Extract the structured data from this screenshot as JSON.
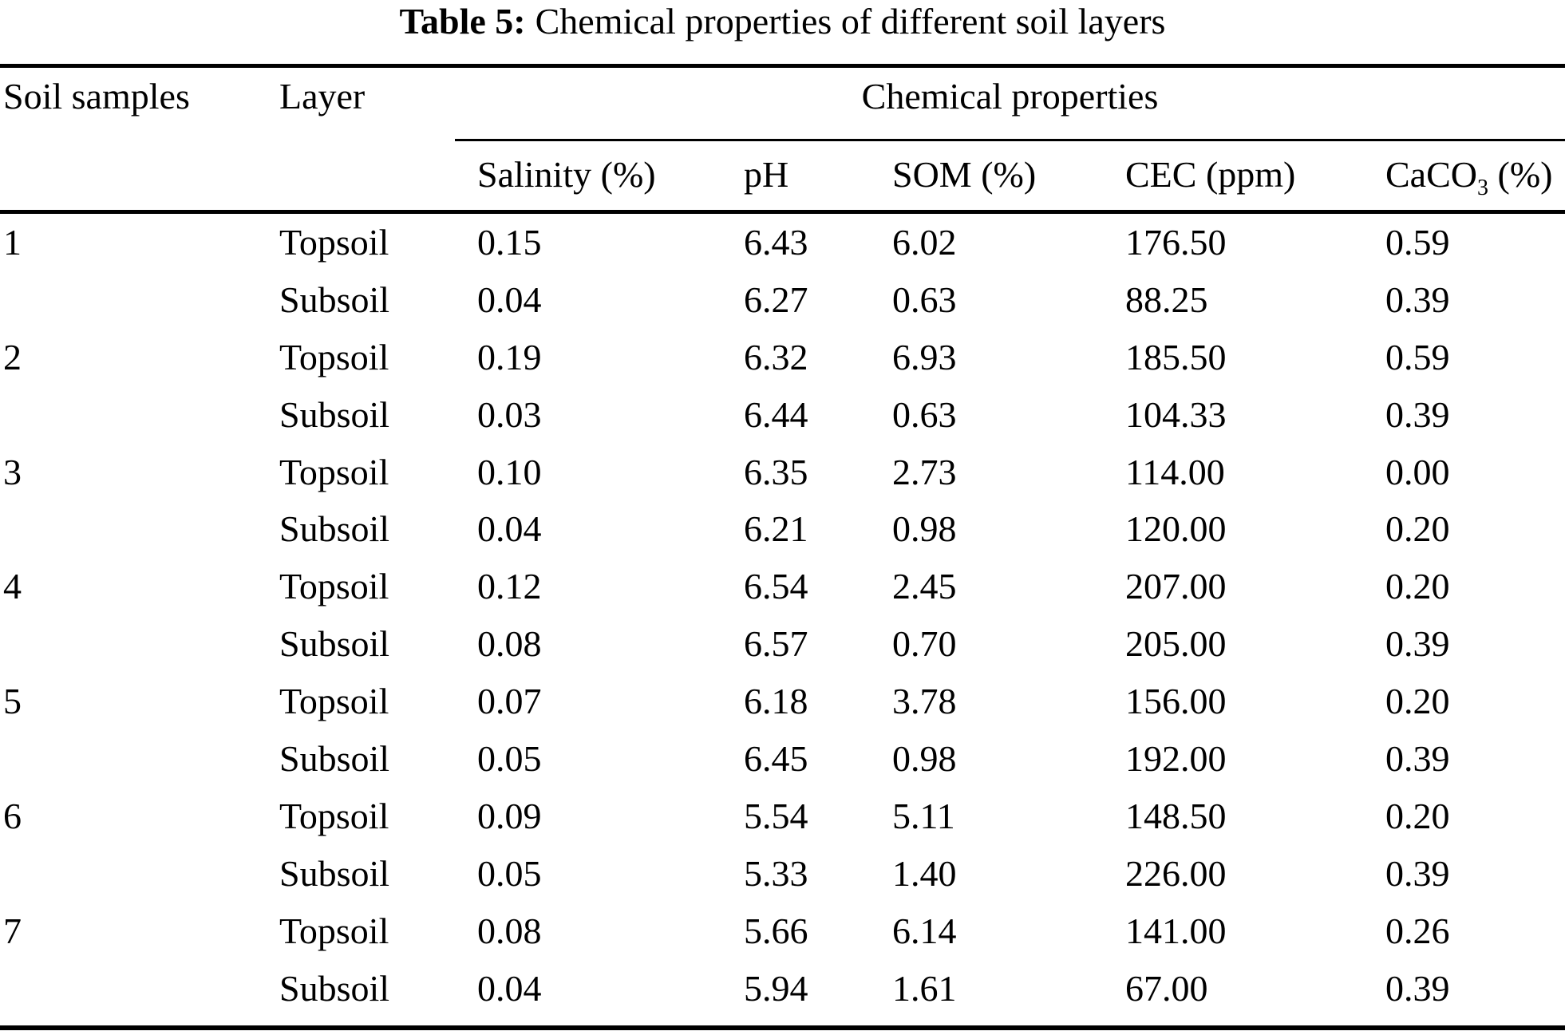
{
  "table": {
    "title_bold": "Table 5:",
    "title_rest": "Chemical properties of different soil layers",
    "col_headers": {
      "soil_samples": "Soil samples",
      "layer": "Layer",
      "group": "Chemical properties"
    },
    "sub_headers": {
      "salinity": "Salinity (%)",
      "ph": "pH",
      "som": "SOM (%)",
      "cec": "CEC (ppm)",
      "caco3_prefix": "CaCO",
      "caco3_sub": "3",
      "caco3_suffix": " (%)"
    },
    "rows": [
      {
        "sample": "1",
        "layer": "Topsoil",
        "salinity": "0.15",
        "ph": "6.43",
        "som": "6.02",
        "cec": "176.50",
        "caco3": "0.59"
      },
      {
        "sample": "",
        "layer": "Subsoil",
        "salinity": "0.04",
        "ph": "6.27",
        "som": "0.63",
        "cec": "88.25",
        "caco3": "0.39"
      },
      {
        "sample": "2",
        "layer": "Topsoil",
        "salinity": "0.19",
        "ph": "6.32",
        "som": "6.93",
        "cec": "185.50",
        "caco3": "0.59"
      },
      {
        "sample": "",
        "layer": "Subsoil",
        "salinity": "0.03",
        "ph": "6.44",
        "som": "0.63",
        "cec": "104.33",
        "caco3": "0.39"
      },
      {
        "sample": "3",
        "layer": "Topsoil",
        "salinity": "0.10",
        "ph": "6.35",
        "som": "2.73",
        "cec": "114.00",
        "caco3": "0.00"
      },
      {
        "sample": "",
        "layer": "Subsoil",
        "salinity": "0.04",
        "ph": "6.21",
        "som": "0.98",
        "cec": "120.00",
        "caco3": "0.20"
      },
      {
        "sample": "4",
        "layer": "Topsoil",
        "salinity": "0.12",
        "ph": "6.54",
        "som": "2.45",
        "cec": "207.00",
        "caco3": "0.20"
      },
      {
        "sample": "",
        "layer": "Subsoil",
        "salinity": "0.08",
        "ph": "6.57",
        "som": "0.70",
        "cec": "205.00",
        "caco3": "0.39"
      },
      {
        "sample": "5",
        "layer": "Topsoil",
        "salinity": "0.07",
        "ph": "6.18",
        "som": "3.78",
        "cec": "156.00",
        "caco3": "0.20"
      },
      {
        "sample": "",
        "layer": "Subsoil",
        "salinity": "0.05",
        "ph": "6.45",
        "som": "0.98",
        "cec": "192.00",
        "caco3": "0.39"
      },
      {
        "sample": "6",
        "layer": "Topsoil",
        "salinity": "0.09",
        "ph": "5.54",
        "som": "5.11",
        "cec": "148.50",
        "caco3": "0.20"
      },
      {
        "sample": "",
        "layer": "Subsoil",
        "salinity": "0.05",
        "ph": "5.33",
        "som": "1.40",
        "cec": "226.00",
        "caco3": "0.39"
      },
      {
        "sample": "7",
        "layer": "Topsoil",
        "salinity": "0.08",
        "ph": "5.66",
        "som": "6.14",
        "cec": "141.00",
        "caco3": "0.26"
      },
      {
        "sample": "",
        "layer": "Subsoil",
        "salinity": "0.04",
        "ph": "5.94",
        "som": "1.61",
        "cec": "67.00",
        "caco3": "0.39"
      }
    ]
  },
  "colors": {
    "text": "#000000",
    "background": "#ffffff",
    "rule": "#000000"
  }
}
